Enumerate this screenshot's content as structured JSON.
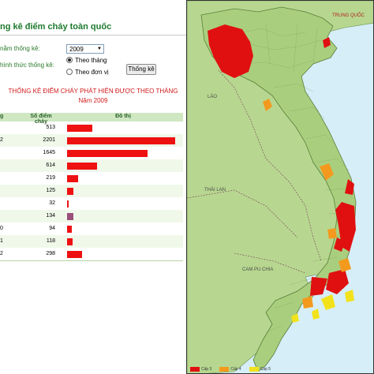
{
  "panel": {
    "title": "ng kê điểm cháy toàn quốc"
  },
  "form": {
    "year_label": "nằm thống kê:",
    "year_value": "2009",
    "method_label": "hình thức thống kê:",
    "radio_month": "Theo tháng",
    "radio_unit": "Theo đơn vị",
    "button": "Thống kê"
  },
  "report": {
    "title": "THỐNG KÊ ĐIỂM CHÁY PHÁT HIỆN ĐƯỢC THEO THÁNG",
    "year": "Năm 2009"
  },
  "table": {
    "headers": {
      "month": "g",
      "count": "Số điểm cháy",
      "chart": "Đồ thị"
    },
    "rows": [
      {
        "month": "",
        "count": "513"
      },
      {
        "month": "2",
        "count": "2201"
      },
      {
        "month": "",
        "count": "1645"
      },
      {
        "month": "",
        "count": "614"
      },
      {
        "month": "",
        "count": "219"
      },
      {
        "month": "",
        "count": "125"
      },
      {
        "month": "",
        "count": "32"
      },
      {
        "month": "",
        "count": "134"
      },
      {
        "month": "0",
        "count": "94"
      },
      {
        "month": "1",
        "count": "118"
      },
      {
        "month": "2",
        "count": "298"
      }
    ],
    "highlight_row": 7,
    "bar_color": "#ee1111",
    "highlight_color": "#9b4f7a"
  },
  "map": {
    "labels": {
      "china": "TRUNG QUỐC",
      "laos": "LÀO",
      "thailand": "THÁI LAN",
      "cambodia": "CAM PU CHIA"
    },
    "colors": {
      "land": "#b7d790",
      "sea": "#d6eef8",
      "level3": "#e01010",
      "level4": "#f39a1e",
      "level5": "#f2e21c"
    },
    "legend": [
      "Cấp 3",
      "Cấp 4",
      "Cấp 5"
    ]
  }
}
